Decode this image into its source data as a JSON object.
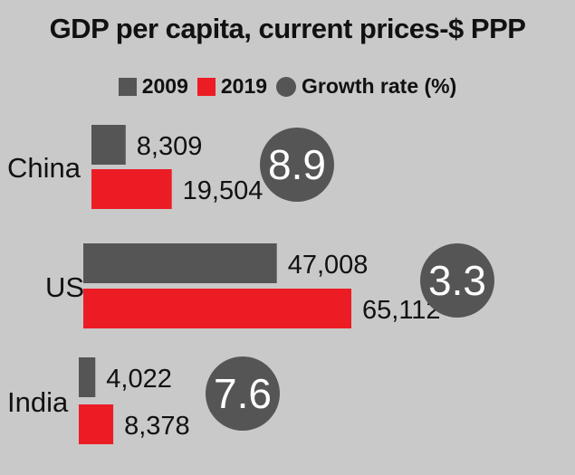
{
  "chart_data": {
    "type": "bar",
    "orientation": "horizontal",
    "title": "GDP per capita, current prices-$ PPP",
    "categories": [
      "China",
      "US",
      "India"
    ],
    "series": [
      {
        "name": "2009",
        "color": "#555555",
        "values": [
          8309,
          47008,
          4022
        ],
        "labels": [
          "8,309",
          "47,008",
          "4,022"
        ]
      },
      {
        "name": "2019",
        "color": "#ec1c24",
        "values": [
          19504,
          65112,
          8378
        ],
        "labels": [
          "19,504",
          "65,112",
          "8,378"
        ]
      }
    ],
    "growth_rate": {
      "name": "Growth rate (%)",
      "color": "#555555",
      "values": [
        8.9,
        3.3,
        7.6
      ],
      "labels": [
        "8.9",
        "3.3",
        "7.6"
      ]
    },
    "legend_placement": "top-center",
    "grid": false
  }
}
